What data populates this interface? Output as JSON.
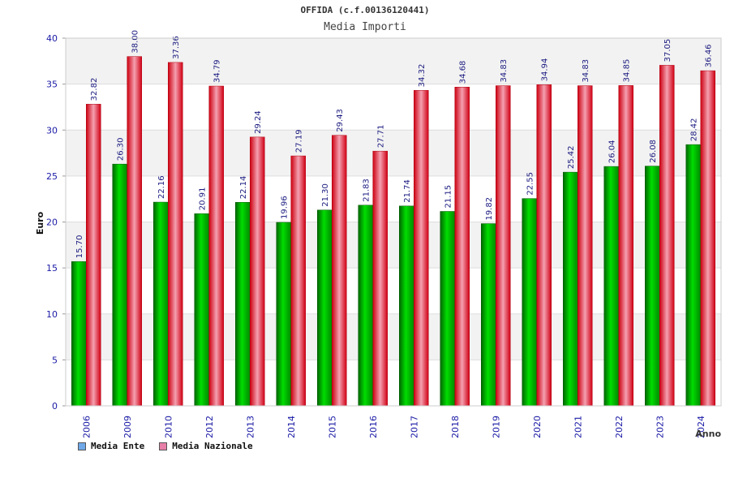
{
  "chart_data": {
    "type": "bar",
    "title": "OFFIDA (c.f.00136120441)",
    "subtitle": "Media Importi",
    "xlabel": "Anno",
    "ylabel": "Euro",
    "ylim": [
      0,
      40
    ],
    "yticks": [
      0,
      5,
      10,
      15,
      20,
      25,
      30,
      35,
      40
    ],
    "categories": [
      "2006",
      "2009",
      "2010",
      "2012",
      "2013",
      "2014",
      "2015",
      "2016",
      "2017",
      "2018",
      "2019",
      "2020",
      "2021",
      "2022",
      "2023",
      "2024"
    ],
    "series": [
      {
        "name": "Media Ente",
        "color": "#00b000",
        "legend_color": "#6fa8e8",
        "values": [
          15.7,
          26.3,
          22.16,
          20.91,
          22.14,
          19.96,
          21.3,
          21.83,
          21.74,
          21.15,
          19.82,
          22.55,
          25.42,
          26.04,
          26.08,
          28.42
        ],
        "labels": [
          "15.70",
          "26.30",
          "22.16",
          "20.91",
          "22.14",
          "19.96",
          "21.30",
          "21.83",
          "21.74",
          "21.15",
          "19.82",
          "22.55",
          "25.42",
          "26.04",
          "26.08",
          "28.42"
        ]
      },
      {
        "name": "Media Nazionale",
        "color": "#e8001c",
        "legend_color": "#e77fa8",
        "values": [
          32.82,
          38.0,
          37.36,
          34.79,
          29.24,
          27.19,
          29.43,
          27.71,
          34.32,
          34.68,
          34.83,
          34.94,
          34.83,
          34.85,
          37.05,
          36.46
        ],
        "labels": [
          "32.82",
          "38.00",
          "37.36",
          "34.79",
          "29.24",
          "27.19",
          "29.43",
          "27.71",
          "34.32",
          "34.68",
          "34.83",
          "34.94",
          "34.83",
          "34.85",
          "37.05",
          "36.46"
        ]
      }
    ],
    "grid": true,
    "legend_position": "bottom-left"
  }
}
